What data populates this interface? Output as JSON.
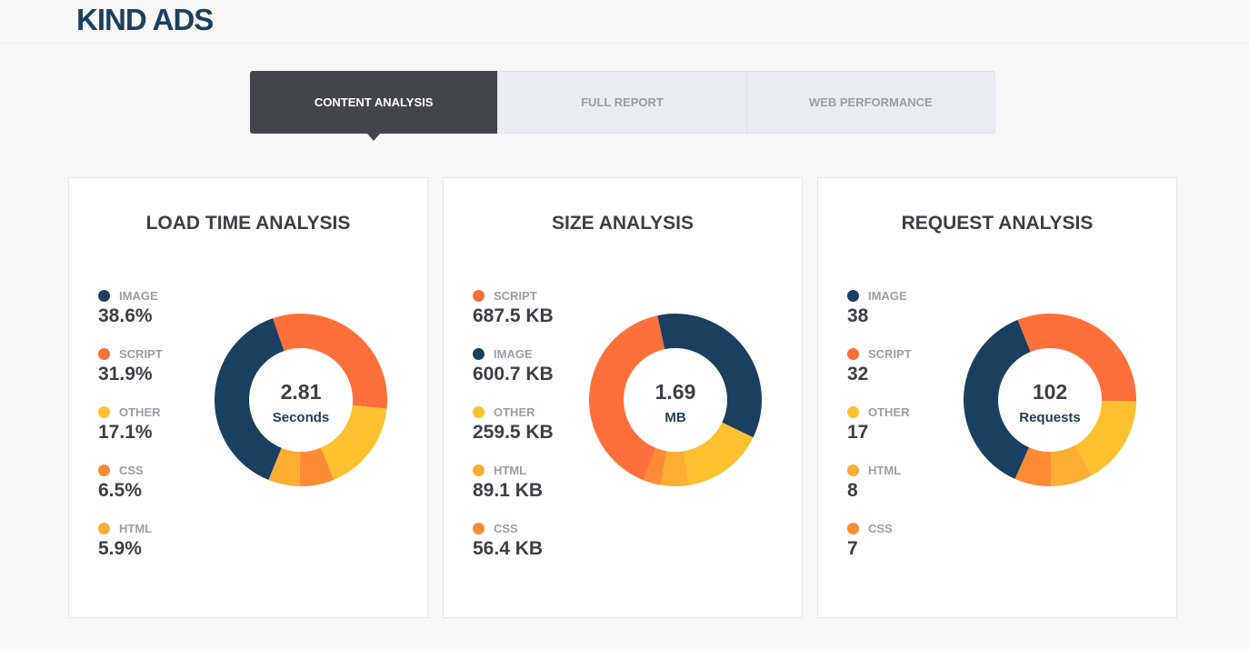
{
  "brand": "KIND ADS",
  "tabs": [
    {
      "label": "CONTENT ANALYSIS",
      "active": true
    },
    {
      "label": "FULL REPORT"
    },
    {
      "label": "WEB PERFORMANCE"
    }
  ],
  "colors": {
    "image": "#1b3f5e",
    "script": "#ff6f3a",
    "other": "#fcc12d",
    "css": "#fb8c35",
    "html": "#fbad34"
  },
  "cards": [
    {
      "title": "LOAD TIME ANALYSIS",
      "center_value": "2.81",
      "center_unit": "Seconds",
      "legend": [
        {
          "key": "image",
          "label": "IMAGE",
          "value": "38.6%"
        },
        {
          "key": "script",
          "label": "SCRIPT",
          "value": "31.9%"
        },
        {
          "key": "other",
          "label": "OTHER",
          "value": "17.1%"
        },
        {
          "key": "css",
          "label": "CSS",
          "value": "6.5%"
        },
        {
          "key": "html",
          "label": "HTML",
          "value": "5.9%"
        }
      ],
      "chart_data": {
        "type": "pie",
        "categories": [
          "SCRIPT",
          "OTHER",
          "CSS",
          "HTML",
          "IMAGE"
        ],
        "keys": [
          "script",
          "other",
          "css",
          "html",
          "image"
        ],
        "values": [
          31.9,
          17.1,
          6.5,
          5.9,
          38.6
        ]
      }
    },
    {
      "title": "SIZE ANALYSIS",
      "center_value": "1.69",
      "center_unit": "MB",
      "legend": [
        {
          "key": "script",
          "label": "SCRIPT",
          "value": "687.5 KB"
        },
        {
          "key": "image",
          "label": "IMAGE",
          "value": "600.7 KB"
        },
        {
          "key": "other",
          "label": "OTHER",
          "value": "259.5 KB"
        },
        {
          "key": "html",
          "label": "HTML",
          "value": "89.1 KB"
        },
        {
          "key": "css",
          "label": "CSS",
          "value": "56.4 KB"
        }
      ],
      "chart_data": {
        "type": "pie",
        "categories": [
          "IMAGE",
          "OTHER",
          "HTML",
          "CSS",
          "SCRIPT"
        ],
        "keys": [
          "image",
          "other",
          "html",
          "css",
          "script"
        ],
        "values": [
          600.7,
          259.5,
          89.1,
          56.4,
          687.5
        ]
      }
    },
    {
      "title": "REQUEST ANALYSIS",
      "center_value": "102",
      "center_unit": "Requests",
      "legend": [
        {
          "key": "image",
          "label": "IMAGE",
          "value": "38"
        },
        {
          "key": "script",
          "label": "SCRIPT",
          "value": "32"
        },
        {
          "key": "other",
          "label": "OTHER",
          "value": "17"
        },
        {
          "key": "html",
          "label": "HTML",
          "value": "8"
        },
        {
          "key": "css",
          "label": "CSS",
          "value": "7"
        }
      ],
      "chart_data": {
        "type": "pie",
        "categories": [
          "SCRIPT",
          "OTHER",
          "HTML",
          "CSS",
          "IMAGE"
        ],
        "keys": [
          "script",
          "other",
          "html",
          "css",
          "image"
        ],
        "values": [
          32,
          17,
          8,
          7,
          38
        ]
      }
    }
  ]
}
